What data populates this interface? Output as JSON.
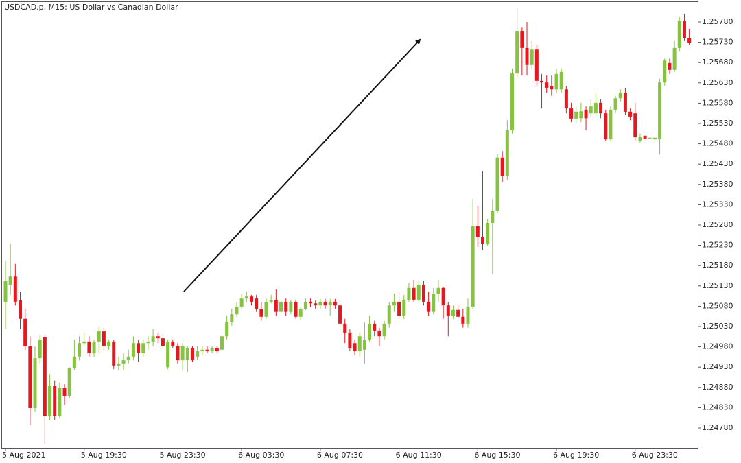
{
  "chart_data": {
    "type": "candlestick",
    "title": "USDCAD.p, M15:  US Dollar vs Canadian Dollar",
    "up_color": "#86c440",
    "down_color": "#e8171f",
    "categories": [
      "5 Aug 2021",
      null,
      null,
      null,
      null,
      null,
      null,
      null,
      null,
      null,
      null,
      null,
      null,
      null,
      null,
      null,
      "5 Aug 19:30",
      null,
      null,
      null,
      null,
      null,
      null,
      null,
      null,
      null,
      null,
      null,
      null,
      null,
      null,
      null,
      "5 Aug 23:30",
      null,
      null,
      null,
      null,
      null,
      null,
      null,
      null,
      null,
      null,
      null,
      null,
      null,
      null,
      null,
      "6 Aug 03:30",
      null,
      null,
      null,
      null,
      null,
      null,
      null,
      null,
      null,
      null,
      null,
      null,
      null,
      null,
      null,
      "6 Aug 07:30",
      null,
      null,
      null,
      null,
      null,
      null,
      null,
      null,
      null,
      null,
      null,
      null,
      null,
      null,
      null,
      "6 Aug 11:30",
      null,
      null,
      null,
      null,
      null,
      null,
      null,
      null,
      null,
      null,
      null,
      null,
      null,
      null,
      null,
      "6 Aug 15:30",
      null,
      null,
      null,
      null,
      null,
      null,
      null,
      null,
      null,
      null,
      null,
      null,
      null,
      null,
      null,
      "6 Aug 19:30",
      null,
      null,
      null,
      null,
      null,
      null,
      null,
      null,
      null,
      null,
      null,
      null,
      null,
      null,
      null,
      "6 Aug 23:30",
      null,
      null,
      null,
      null,
      null,
      null,
      null,
      null,
      null,
      null,
      null
    ],
    "open": [
      1.25091,
      1.25133,
      1.25153,
      1.25094,
      1.25049,
      1.24981,
      1.24829,
      1.24952,
      1.25003,
      1.24809,
      1.24883,
      1.24809,
      1.24878,
      1.24859,
      1.24927,
      1.24956,
      1.24989,
      1.24993,
      1.24964,
      1.24993,
      1.25018,
      1.24981,
      1.24993,
      1.24934,
      1.24939,
      1.24947,
      1.24956,
      1.24989,
      1.24964,
      1.24989,
      1.24993,
      1.25006,
      1.25001,
      1.2493,
      1.24993,
      1.24981,
      1.24947,
      1.24947,
      1.24976,
      1.24956,
      1.24969,
      1.24973,
      1.24969,
      1.24976,
      1.24973,
      1.25006,
      1.2504,
      1.2506,
      1.25079,
      1.25099,
      1.25104,
      1.25099,
      1.25074,
      1.25054,
      1.25091,
      1.25096,
      1.25066,
      1.25091,
      1.25066,
      1.25091,
      1.25054,
      1.25074,
      1.25091,
      1.25087,
      1.25082,
      1.25091,
      1.25082,
      1.25091,
      1.25082,
      1.25037,
      1.25015,
      1.24989,
      1.24969,
      1.24973,
      1.24998,
      1.25037,
      1.2502,
      1.25006,
      1.25037,
      1.25082,
      1.25091,
      1.25057,
      1.25096,
      1.25125,
      1.25096,
      1.25133,
      1.25091,
      1.25066,
      1.25111,
      1.25125,
      1.25082,
      1.25057,
      1.25071,
      1.25054,
      1.25037,
      1.25079,
      1.25277,
      1.25251,
      1.25234,
      1.25285,
      1.25315,
      1.25446,
      1.254,
      1.25513,
      1.25653,
      1.25758,
      1.25716,
      1.25674,
      1.25712,
      1.25635,
      1.25631,
      1.25623,
      1.25614,
      1.25614,
      1.25614,
      1.25567,
      1.25542,
      1.25543,
      1.25564,
      1.25555,
      1.25555,
      1.25581,
      1.25555,
      1.25491,
      1.25564,
      1.25592,
      1.25606,
      1.25559,
      1.25555,
      1.25488,
      1.255,
      1.25493,
      1.25491,
      1.25491,
      1.25631,
      1.25679,
      1.25662,
      1.25716,
      1.25783,
      1.25741
    ],
    "high": [
      1.25192,
      1.25234,
      1.25184,
      1.25116,
      1.25074,
      1.25006,
      1.24981,
      1.2501,
      1.2501,
      1.24913,
      1.24897,
      1.24892,
      1.24888,
      1.2493,
      1.24998,
      1.25006,
      1.25015,
      1.25006,
      1.24998,
      1.2503,
      1.25027,
      1.24998,
      1.24998,
      1.24956,
      1.24964,
      1.24973,
      1.25006,
      1.24998,
      1.24998,
      1.25006,
      1.25023,
      1.25015,
      1.25015,
      1.24998,
      1.24998,
      1.24989,
      1.24989,
      1.24981,
      1.24981,
      1.24981,
      1.24981,
      1.24981,
      1.24981,
      1.24981,
      1.25015,
      1.25057,
      1.25074,
      1.25091,
      1.25111,
      1.25116,
      1.25108,
      1.25108,
      1.25091,
      1.25099,
      1.25108,
      1.25121,
      1.25099,
      1.25099,
      1.25096,
      1.25096,
      1.25077,
      1.25099,
      1.25099,
      1.25094,
      1.25098,
      1.25098,
      1.25098,
      1.25098,
      1.25094,
      1.25049,
      1.25023,
      1.24998,
      1.25015,
      1.2504,
      1.25057,
      1.25044,
      1.25027,
      1.25044,
      1.25091,
      1.25111,
      1.25116,
      1.25108,
      1.25138,
      1.25145,
      1.25142,
      1.25142,
      1.25116,
      1.25125,
      1.25145,
      1.25128,
      1.25091,
      1.25082,
      1.25082,
      1.25074,
      1.25099,
      1.25344,
      1.25327,
      1.25412,
      1.25294,
      1.25344,
      1.25454,
      1.25462,
      1.25538,
      1.25665,
      1.25814,
      1.25766,
      1.2578,
      1.25733,
      1.25724,
      1.25652,
      1.25648,
      1.25648,
      1.25665,
      1.25665,
      1.25623,
      1.25581,
      1.25572,
      1.25581,
      1.25572,
      1.25589,
      1.25606,
      1.25589,
      1.25564,
      1.25572,
      1.25598,
      1.25614,
      1.25618,
      1.25567,
      1.25581,
      1.25505,
      1.255,
      1.25495,
      1.25496,
      1.2564,
      1.2569,
      1.2569,
      1.25733,
      1.25792,
      1.258,
      1.25763
    ],
    "low": [
      1.25023,
      1.25108,
      1.25082,
      1.25023,
      1.24973,
      1.24787,
      1.24821,
      1.24939,
      1.2474,
      1.248,
      1.248,
      1.24804,
      1.24837,
      1.24854,
      1.24922,
      1.24947,
      1.24981,
      1.24956,
      1.24956,
      1.24964,
      1.24969,
      1.24973,
      1.24925,
      1.24922,
      1.24922,
      1.24939,
      1.24947,
      1.24942,
      1.24956,
      1.24973,
      1.24981,
      1.24989,
      1.24973,
      1.24925,
      1.24976,
      1.24939,
      1.24922,
      1.24917,
      1.24942,
      1.24947,
      1.24959,
      1.24964,
      1.24964,
      1.24964,
      1.24969,
      1.24998,
      1.25032,
      1.25054,
      1.25074,
      1.25091,
      1.25082,
      1.25066,
      1.25044,
      1.25049,
      1.25087,
      1.25057,
      1.2506,
      1.25057,
      1.2506,
      1.25049,
      1.25047,
      1.25071,
      1.25077,
      1.25074,
      1.25074,
      1.25074,
      1.25057,
      1.25074,
      1.25023,
      1.24989,
      1.24969,
      1.24959,
      1.24956,
      1.24939,
      1.24993,
      1.25006,
      1.24981,
      1.24998,
      1.25027,
      1.25066,
      1.25049,
      1.25049,
      1.25091,
      1.25091,
      1.25091,
      1.25082,
      1.25057,
      1.2506,
      1.25091,
      1.25049,
      1.25006,
      1.25049,
      1.25049,
      1.25027,
      1.25027,
      1.25074,
      1.25226,
      1.25218,
      1.25229,
      1.25158,
      1.2531,
      1.25386,
      1.25391,
      1.25505,
      1.2564,
      1.25648,
      1.25648,
      1.25665,
      1.25623,
      1.25567,
      1.25606,
      1.25598,
      1.25606,
      1.25606,
      1.25555,
      1.25533,
      1.2553,
      1.25533,
      1.25513,
      1.25547,
      1.25547,
      1.25543,
      1.25488,
      1.25488,
      1.25555,
      1.25584,
      1.2555,
      1.25538,
      1.25488,
      1.25483,
      1.25493,
      1.25491,
      1.25488,
      1.25454,
      1.25623,
      1.25652,
      1.25657,
      1.25707,
      1.25733,
      1.25724
    ],
    "close": [
      1.25142,
      1.25153,
      1.25091,
      1.25049,
      1.24981,
      1.24829,
      1.24952,
      1.24998,
      1.24809,
      1.24883,
      1.24809,
      1.24878,
      1.24859,
      1.24927,
      1.24956,
      1.24989,
      1.24993,
      1.24964,
      1.24993,
      1.25018,
      1.24981,
      1.24993,
      1.24934,
      1.24939,
      1.24947,
      1.24956,
      1.24989,
      1.24964,
      1.24989,
      1.24993,
      1.25006,
      1.25001,
      1.24981,
      1.24993,
      1.24981,
      1.24947,
      1.24981,
      1.24976,
      1.24947,
      1.24969,
      1.24973,
      1.24969,
      1.24976,
      1.24969,
      1.25006,
      1.2504,
      1.2506,
      1.25079,
      1.25099,
      1.25104,
      1.25091,
      1.25074,
      1.25054,
      1.25091,
      1.25096,
      1.25066,
      1.25091,
      1.25066,
      1.25091,
      1.25054,
      1.25074,
      1.25091,
      1.25087,
      1.25082,
      1.25091,
      1.25082,
      1.25091,
      1.25082,
      1.25037,
      1.25015,
      1.24976,
      1.24969,
      1.25006,
      1.24998,
      1.25037,
      1.2502,
      1.25006,
      1.25037,
      1.25082,
      1.25091,
      1.25057,
      1.25096,
      1.25125,
      1.25096,
      1.25133,
      1.25091,
      1.25066,
      1.25111,
      1.25125,
      1.25082,
      1.25057,
      1.25071,
      1.25054,
      1.25037,
      1.25079,
      1.25277,
      1.25251,
      1.25234,
      1.25285,
      1.25315,
      1.25446,
      1.254,
      1.25513,
      1.25653,
      1.25758,
      1.25716,
      1.25674,
      1.25712,
      1.25635,
      1.25631,
      1.25618,
      1.25614,
      1.25652,
      1.25657,
      1.25567,
      1.25542,
      1.25559,
      1.2556,
      1.25543,
      1.25572,
      1.25581,
      1.25555,
      1.25491,
      1.25564,
      1.25592,
      1.25606,
      1.25559,
      1.25547,
      1.25496,
      1.25496,
      1.25493,
      1.25495,
      1.25495,
      1.25631,
      1.25685,
      1.25662,
      1.25716,
      1.25783,
      1.25741,
      1.25729
    ],
    "ylim": [
      1.24731,
      1.25829
    ],
    "yticks": [
      {
        "value": 1.2478,
        "label": "1.24780"
      },
      {
        "value": 1.2483,
        "label": "1.24830"
      },
      {
        "value": 1.2488,
        "label": "1.24880"
      },
      {
        "value": 1.2493,
        "label": "1.24930"
      },
      {
        "value": 1.2498,
        "label": "1.24980"
      },
      {
        "value": 1.2503,
        "label": "1.25030"
      },
      {
        "value": 1.2508,
        "label": "1.25080"
      },
      {
        "value": 1.2513,
        "label": "1.25130"
      },
      {
        "value": 1.2518,
        "label": "1.25180"
      },
      {
        "value": 1.2523,
        "label": "1.25230"
      },
      {
        "value": 1.2528,
        "label": "1.25280"
      },
      {
        "value": 1.2533,
        "label": "1.25330"
      },
      {
        "value": 1.2538,
        "label": "1.25380"
      },
      {
        "value": 1.2543,
        "label": "1.25430"
      },
      {
        "value": 1.2548,
        "label": "1.25480"
      },
      {
        "value": 1.2553,
        "label": "1.25530"
      },
      {
        "value": 1.2558,
        "label": "1.25580"
      },
      {
        "value": 1.2563,
        "label": "1.25630"
      },
      {
        "value": 1.2568,
        "label": "1.25680"
      },
      {
        "value": 1.2573,
        "label": "1.25730"
      },
      {
        "value": 1.2578,
        "label": "1.25780"
      }
    ],
    "grid": false
  }
}
